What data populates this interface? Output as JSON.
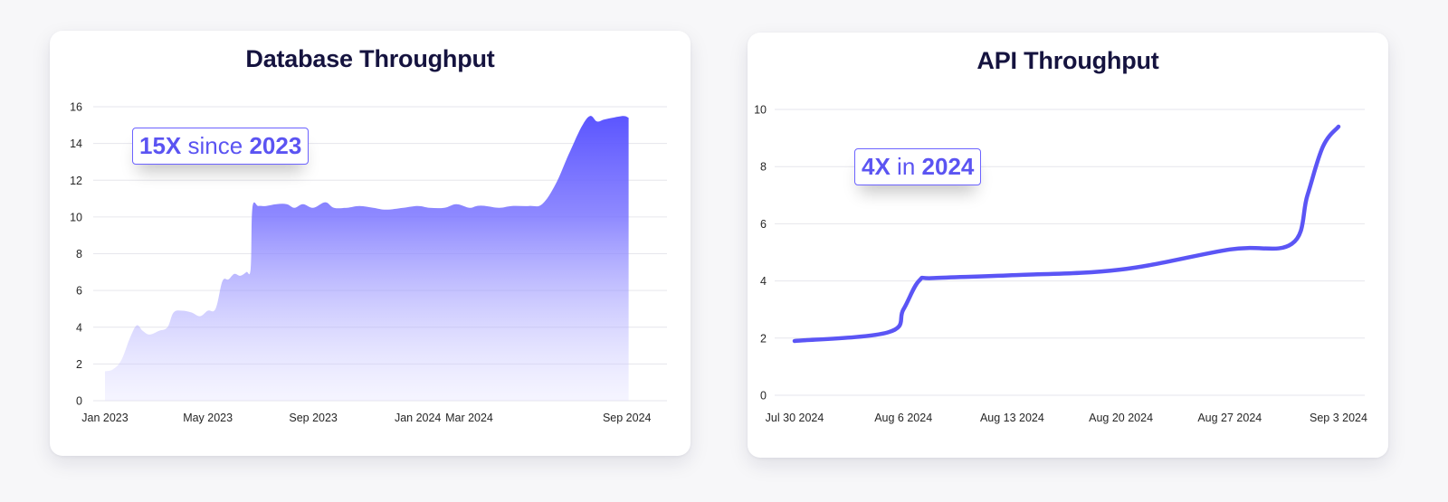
{
  "colors": {
    "accent": "#5b55f5",
    "title": "#15133f",
    "grid": "#e6e6ec",
    "background": "#f7f7f9"
  },
  "cards": [
    {
      "title": "Database Throughput",
      "callout": {
        "strong": "15X",
        "light": "since",
        "year": "2023"
      }
    },
    {
      "title": "API Throughput",
      "callout": {
        "strong": "4X",
        "light": "in",
        "year": "2024"
      }
    }
  ],
  "chart_data": [
    {
      "type": "area",
      "title": "Database Throughput",
      "xlabel": "",
      "ylabel": "",
      "ylim": [
        0,
        16
      ],
      "yticks": [
        0,
        2,
        4,
        6,
        8,
        10,
        12,
        14,
        16
      ],
      "xlim": [
        "2023-01-01",
        "2024-09-15"
      ],
      "xticks": [
        {
          "label": "Jan 2023",
          "x": "2023-01-01"
        },
        {
          "label": "May 2023",
          "x": "2023-05-01"
        },
        {
          "label": "Sep 2023",
          "x": "2023-09-01"
        },
        {
          "label": "Jan 2024",
          "x": "2024-01-01"
        },
        {
          "label": "Mar 2024",
          "x": "2024-03-01"
        },
        {
          "label": "Sep 2024",
          "x": "2024-09-01"
        }
      ],
      "grid": true,
      "series": [
        {
          "values": [
            [
              "2023-01-01",
              1.6
            ],
            [
              "2023-01-10",
              1.7
            ],
            [
              "2023-01-20",
              2.2
            ],
            [
              "2023-01-30",
              3.4
            ],
            [
              "2023-02-07",
              4.1
            ],
            [
              "2023-02-14",
              3.8
            ],
            [
              "2023-02-22",
              3.6
            ],
            [
              "2023-03-05",
              3.8
            ],
            [
              "2023-03-15",
              4.0
            ],
            [
              "2023-03-22",
              4.8
            ],
            [
              "2023-04-01",
              4.9
            ],
            [
              "2023-04-12",
              4.8
            ],
            [
              "2023-04-22",
              4.6
            ],
            [
              "2023-05-01",
              4.9
            ],
            [
              "2023-05-10",
              5.0
            ],
            [
              "2023-05-18",
              6.5
            ],
            [
              "2023-05-25",
              6.6
            ],
            [
              "2023-06-01",
              6.9
            ],
            [
              "2023-06-08",
              6.8
            ],
            [
              "2023-06-15",
              7.0
            ],
            [
              "2023-06-20",
              7.2
            ],
            [
              "2023-06-22",
              10.5
            ],
            [
              "2023-06-29",
              10.6
            ],
            [
              "2023-07-08",
              10.6
            ],
            [
              "2023-07-20",
              10.7
            ],
            [
              "2023-08-01",
              10.7
            ],
            [
              "2023-08-10",
              10.5
            ],
            [
              "2023-08-20",
              10.7
            ],
            [
              "2023-09-01",
              10.5
            ],
            [
              "2023-09-15",
              10.8
            ],
            [
              "2023-09-25",
              10.5
            ],
            [
              "2023-10-10",
              10.5
            ],
            [
              "2023-10-25",
              10.6
            ],
            [
              "2023-11-10",
              10.5
            ],
            [
              "2023-11-25",
              10.4
            ],
            [
              "2023-12-15",
              10.5
            ],
            [
              "2024-01-01",
              10.6
            ],
            [
              "2024-01-15",
              10.5
            ],
            [
              "2024-02-01",
              10.5
            ],
            [
              "2024-02-15",
              10.7
            ],
            [
              "2024-03-01",
              10.5
            ],
            [
              "2024-03-10",
              10.6
            ],
            [
              "2024-03-20",
              10.6
            ],
            [
              "2024-04-05",
              10.5
            ],
            [
              "2024-04-20",
              10.6
            ],
            [
              "2024-05-10",
              10.6
            ],
            [
              "2024-05-25",
              10.7
            ],
            [
              "2024-06-10",
              11.8
            ],
            [
              "2024-06-25",
              13.4
            ],
            [
              "2024-07-10",
              14.9
            ],
            [
              "2024-07-20",
              15.5
            ],
            [
              "2024-07-28",
              15.2
            ],
            [
              "2024-08-05",
              15.3
            ],
            [
              "2024-08-15",
              15.4
            ],
            [
              "2024-08-28",
              15.5
            ],
            [
              "2024-09-03",
              15.4
            ]
          ]
        }
      ]
    },
    {
      "type": "line",
      "title": "API Throughput",
      "xlabel": "",
      "ylabel": "",
      "ylim": [
        0,
        10
      ],
      "yticks": [
        0,
        2,
        4,
        6,
        8,
        10
      ],
      "xlim": [
        "2024-07-30",
        "2024-09-03"
      ],
      "xticks": [
        {
          "label": "Jul 30 2024",
          "x": "2024-07-30"
        },
        {
          "label": "Aug 6 2024",
          "x": "2024-08-06"
        },
        {
          "label": "Aug 13 2024",
          "x": "2024-08-13"
        },
        {
          "label": "Aug 20 2024",
          "x": "2024-08-20"
        },
        {
          "label": "Aug 27 2024",
          "x": "2024-08-27"
        },
        {
          "label": "Sep 3 2024",
          "x": "2024-09-03"
        }
      ],
      "grid": true,
      "series": [
        {
          "values": [
            [
              "2024-07-30",
              1.9
            ],
            [
              "2024-08-05",
              2.2
            ],
            [
              "2024-08-06",
              3.0
            ],
            [
              "2024-08-07",
              4.0
            ],
            [
              "2024-08-08",
              4.1
            ],
            [
              "2024-08-13",
              4.2
            ],
            [
              "2024-08-20",
              4.4
            ],
            [
              "2024-08-27",
              5.1
            ],
            [
              "2024-08-31",
              5.3
            ],
            [
              "2024-09-01",
              7.0
            ],
            [
              "2024-09-02",
              8.7
            ],
            [
              "2024-09-03",
              9.4
            ]
          ]
        }
      ]
    }
  ]
}
